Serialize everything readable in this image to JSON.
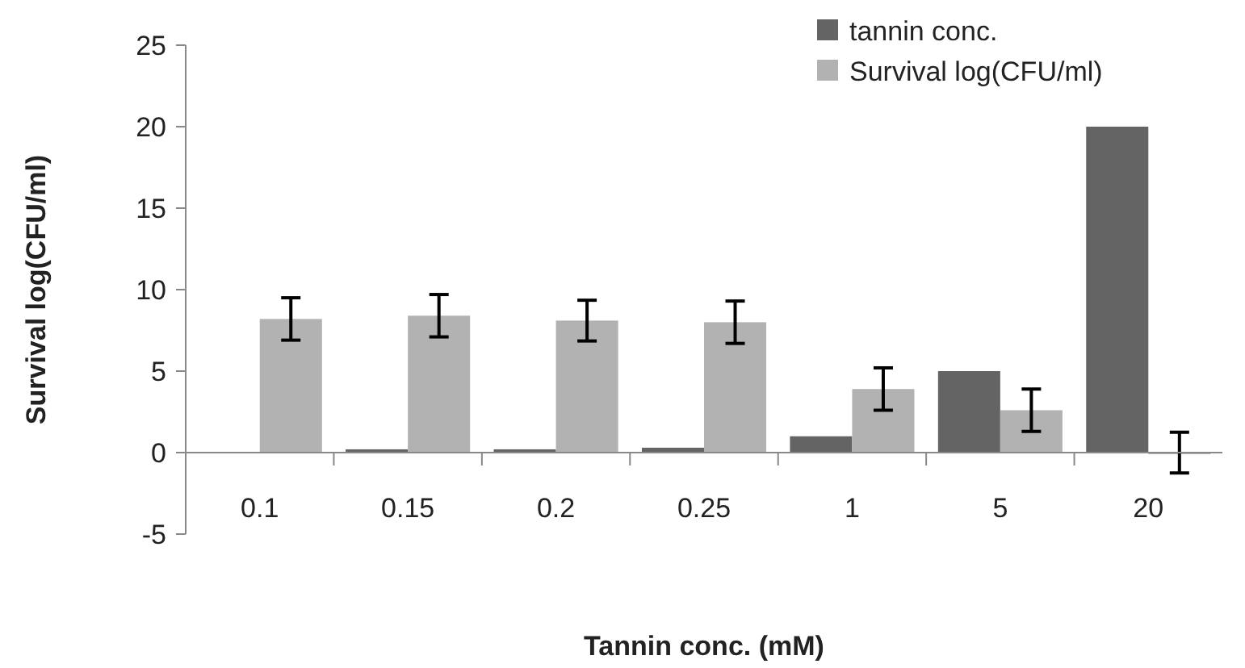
{
  "chart_data": {
    "type": "bar",
    "xlabel": "Tannin conc. (mM)",
    "ylabel": "Survival log(CFU/ml)",
    "categories": [
      "0.1",
      "0.15",
      "0.2",
      "0.25",
      "1",
      "5",
      "20"
    ],
    "series": [
      {
        "name": "tannin conc.",
        "color": "#646464",
        "values": [
          null,
          0.2,
          0.2,
          0.3,
          1,
          5,
          20
        ]
      },
      {
        "name": "Survival log(CFU/ml)",
        "color": "#b2b2b2",
        "values": [
          8.2,
          8.4,
          8.1,
          8.0,
          3.9,
          2.6,
          0
        ],
        "errors": [
          1.3,
          1.3,
          1.25,
          1.3,
          1.3,
          1.3,
          1.25
        ]
      }
    ],
    "ylim": [
      -5,
      25
    ],
    "yticks": [
      -5,
      0,
      5,
      10,
      15,
      20,
      25
    ],
    "grid": false,
    "legend": "top right"
  }
}
